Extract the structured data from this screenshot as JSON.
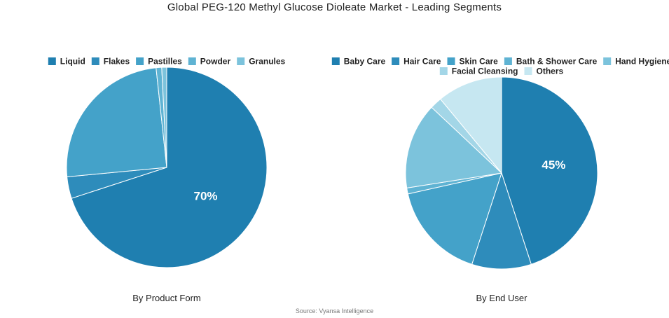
{
  "title": "Global PEG-120 Methyl Glucose Dioleate Market - Leading Segments",
  "source": "Source: Vyansa Intelligence",
  "chart_data": [
    {
      "type": "pie",
      "subtitle": "By Product Form",
      "legend_position": "top",
      "slices": [
        {
          "label": "Liquid",
          "value": 70.0,
          "color": "#1f7fb0",
          "show_label": "70%"
        },
        {
          "label": "Flakes",
          "value": 3.5,
          "color": "#2e8cbb",
          "show_label": ""
        },
        {
          "label": "Pastilles",
          "value": 24.8,
          "color": "#44a2c9",
          "show_label": ""
        },
        {
          "label": "Powder",
          "value": 0.9,
          "color": "#5fb3d3",
          "show_label": ""
        },
        {
          "label": "Granules",
          "value": 0.8,
          "color": "#7cc3dc",
          "show_label": ""
        }
      ]
    },
    {
      "type": "pie",
      "subtitle": "By End User",
      "legend_position": "top",
      "slices": [
        {
          "label": "Baby Care",
          "value": 45.0,
          "color": "#1f7fb0",
          "show_label": "45%"
        },
        {
          "label": "Hair Care",
          "value": 10.0,
          "color": "#2e8cbb",
          "show_label": ""
        },
        {
          "label": "Skin Care",
          "value": 16.5,
          "color": "#44a2c9",
          "show_label": ""
        },
        {
          "label": "Bath & Shower Care",
          "value": 1.0,
          "color": "#5fb3d3",
          "show_label": ""
        },
        {
          "label": "Hand Hygiene",
          "value": 14.5,
          "color": "#7cc3dc",
          "show_label": ""
        },
        {
          "label": "Facial Cleansing",
          "value": 2.0,
          "color": "#a3d6e7",
          "show_label": ""
        },
        {
          "label": "Others",
          "value": 11.0,
          "color": "#c6e7f1",
          "show_label": ""
        }
      ]
    }
  ]
}
